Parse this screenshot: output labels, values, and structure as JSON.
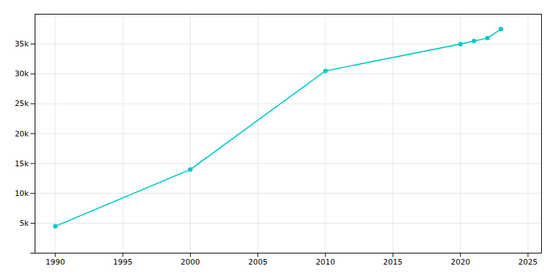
{
  "chart_data": {
    "type": "line",
    "x": [
      1990,
      2000,
      2010,
      2020,
      2021,
      2022,
      2023
    ],
    "values": [
      4500,
      14000,
      30500,
      35000,
      35500,
      36000,
      37500
    ],
    "color": "#00C8C8",
    "marker": "circle",
    "xlim": [
      1988.5,
      2026
    ],
    "ylim": [
      0,
      40000
    ],
    "xticks": [
      1990,
      1995,
      2000,
      2005,
      2010,
      2015,
      2020,
      2025
    ],
    "yticks": [
      {
        "value": 0,
        "label": ""
      },
      {
        "value": 5000,
        "label": "5k"
      },
      {
        "value": 10000,
        "label": "10k"
      },
      {
        "value": 15000,
        "label": "15k"
      },
      {
        "value": 20000,
        "label": "20k"
      },
      {
        "value": 25000,
        "label": "25k"
      },
      {
        "value": 30000,
        "label": "30k"
      },
      {
        "value": 35000,
        "label": "35k"
      }
    ],
    "grid": true
  }
}
